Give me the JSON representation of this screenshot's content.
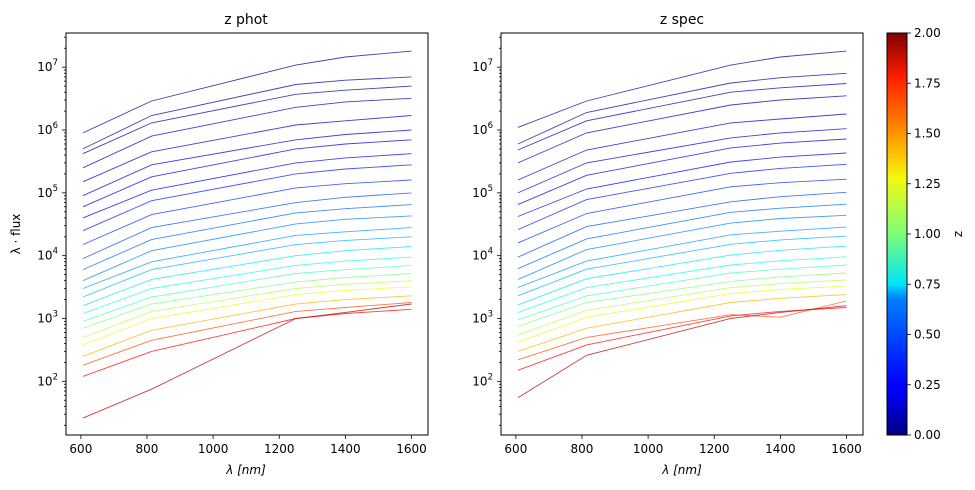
{
  "chart_data": [
    {
      "type": "line",
      "title": "z phot",
      "xlabel": "λ [nm]",
      "ylabel": "λ · flux",
      "x": [
        606,
        814,
        1250,
        1400,
        1600
      ],
      "x_ticks": [
        600,
        800,
        1000,
        1200,
        1400,
        1600
      ],
      "xlim": [
        555,
        1650
      ],
      "y_scale": "log",
      "ylim": [
        14,
        35000000
      ],
      "y_ticks": [
        {
          "value": 100,
          "base": "10",
          "exp": "2"
        },
        {
          "value": 1000,
          "base": "10",
          "exp": "3"
        },
        {
          "value": 10000,
          "base": "10",
          "exp": "4"
        },
        {
          "value": 100000,
          "base": "10",
          "exp": "5"
        },
        {
          "value": 1000000,
          "base": "10",
          "exp": "6"
        },
        {
          "value": 10000000,
          "base": "10",
          "exp": "7"
        }
      ],
      "color_by": "z",
      "colormap": "jet",
      "grid": false,
      "series": [
        {
          "z": 0.05,
          "values": [
            900000,
            2900000,
            10800000,
            14500000,
            18000000
          ]
        },
        {
          "z": 0.08,
          "values": [
            500000,
            1700000,
            5300000,
            6200000,
            7000000
          ]
        },
        {
          "z": 0.1,
          "values": [
            420000,
            1300000,
            3700000,
            4300000,
            5000000
          ]
        },
        {
          "z": 0.12,
          "values": [
            250000,
            800000,
            2300000,
            2800000,
            3200000
          ]
        },
        {
          "z": 0.15,
          "values": [
            150000,
            450000,
            1200000,
            1400000,
            1700000
          ]
        },
        {
          "z": 0.18,
          "values": [
            90000,
            280000,
            700000,
            850000,
            1000000
          ]
        },
        {
          "z": 0.2,
          "values": [
            60000,
            180000,
            500000,
            600000,
            700000
          ]
        },
        {
          "z": 0.25,
          "values": [
            40000,
            110000,
            300000,
            360000,
            420000
          ]
        },
        {
          "z": 0.3,
          "values": [
            25000,
            75000,
            200000,
            240000,
            280000
          ]
        },
        {
          "z": 0.35,
          "values": [
            15000,
            45000,
            120000,
            140000,
            160000
          ]
        },
        {
          "z": 0.4,
          "values": [
            9000,
            28000,
            70000,
            85000,
            100000
          ]
        },
        {
          "z": 0.45,
          "values": [
            6000,
            18000,
            48000,
            56000,
            65000
          ]
        },
        {
          "z": 0.5,
          "values": [
            4000,
            12000,
            32000,
            38000,
            43000
          ]
        },
        {
          "z": 0.55,
          "values": [
            3000,
            8000,
            21000,
            24000,
            28000
          ]
        },
        {
          "z": 0.6,
          "values": [
            2200,
            6000,
            15000,
            17500,
            20000
          ]
        },
        {
          "z": 0.7,
          "values": [
            1600,
            4200,
            10000,
            12000,
            14000
          ]
        },
        {
          "z": 0.8,
          "values": [
            1200,
            3000,
            7000,
            8200,
            9500
          ]
        },
        {
          "z": 0.9,
          "values": [
            900,
            2200,
            5200,
            6000,
            7000
          ]
        },
        {
          "z": 1.0,
          "values": [
            700,
            1700,
            3800,
            4500,
            5200
          ]
        },
        {
          "z": 1.1,
          "values": [
            500,
            1300,
            3000,
            3500,
            4000
          ]
        },
        {
          "z": 1.2,
          "values": [
            380,
            1000,
            2400,
            2800,
            3200
          ]
        },
        {
          "z": 1.4,
          "values": [
            250,
            650,
            1700,
            2000,
            2300
          ]
        },
        {
          "z": 1.6,
          "values": [
            180,
            450,
            1300,
            1500,
            1800
          ]
        },
        {
          "z": 1.75,
          "values": [
            120,
            300,
            1000,
            1200,
            1400
          ]
        },
        {
          "z": 1.9,
          "values": [
            26,
            75,
            1000,
            1250,
            1700
          ]
        }
      ]
    },
    {
      "type": "line",
      "title": "z spec",
      "xlabel": "λ [nm]",
      "ylabel": "",
      "x": [
        606,
        814,
        1250,
        1400,
        1600
      ],
      "x_ticks": [
        600,
        800,
        1000,
        1200,
        1400,
        1600
      ],
      "xlim": [
        555,
        1650
      ],
      "y_scale": "log",
      "ylim": [
        14,
        35000000
      ],
      "y_ticks": [
        {
          "value": 100,
          "base": "10",
          "exp": "2"
        },
        {
          "value": 1000,
          "base": "10",
          "exp": "3"
        },
        {
          "value": 10000,
          "base": "10",
          "exp": "4"
        },
        {
          "value": 100000,
          "base": "10",
          "exp": "5"
        },
        {
          "value": 1000000,
          "base": "10",
          "exp": "6"
        },
        {
          "value": 10000000,
          "base": "10",
          "exp": "7"
        }
      ],
      "color_by": "z",
      "colormap": "jet",
      "grid": false,
      "series": [
        {
          "z": 0.05,
          "values": [
            1100000,
            2900000,
            10800000,
            14500000,
            18000000
          ]
        },
        {
          "z": 0.08,
          "values": [
            600000,
            1900000,
            5600000,
            6800000,
            8000000
          ]
        },
        {
          "z": 0.1,
          "values": [
            480000,
            1400000,
            4000000,
            4700000,
            5500000
          ]
        },
        {
          "z": 0.12,
          "values": [
            300000,
            900000,
            2500000,
            3000000,
            3500000
          ]
        },
        {
          "z": 0.15,
          "values": [
            160000,
            480000,
            1300000,
            1500000,
            1800000
          ]
        },
        {
          "z": 0.18,
          "values": [
            100000,
            300000,
            750000,
            900000,
            1050000
          ]
        },
        {
          "z": 0.2,
          "values": [
            65000,
            190000,
            520000,
            620000,
            720000
          ]
        },
        {
          "z": 0.25,
          "values": [
            42000,
            115000,
            310000,
            370000,
            430000
          ]
        },
        {
          "z": 0.3,
          "values": [
            26000,
            78000,
            205000,
            245000,
            285000
          ]
        },
        {
          "z": 0.35,
          "values": [
            16000,
            47000,
            125000,
            145000,
            165000
          ]
        },
        {
          "z": 0.4,
          "values": [
            9500,
            29000,
            72000,
            87000,
            102000
          ]
        },
        {
          "z": 0.45,
          "values": [
            6200,
            18500,
            49000,
            57000,
            66000
          ]
        },
        {
          "z": 0.5,
          "values": [
            4200,
            12500,
            33000,
            39000,
            44000
          ]
        },
        {
          "z": 0.55,
          "values": [
            3100,
            8200,
            21500,
            24500,
            28500
          ]
        },
        {
          "z": 0.6,
          "values": [
            2300,
            6100,
            15200,
            17800,
            20500
          ]
        },
        {
          "z": 0.7,
          "values": [
            1650,
            4300,
            10200,
            12200,
            14200
          ]
        },
        {
          "z": 0.8,
          "values": [
            1250,
            3100,
            7100,
            8300,
            9600
          ]
        },
        {
          "z": 0.9,
          "values": [
            950,
            2300,
            5300,
            6100,
            7100
          ]
        },
        {
          "z": 1.0,
          "values": [
            750,
            1800,
            3900,
            4600,
            5300
          ]
        },
        {
          "z": 1.1,
          "values": [
            550,
            1350,
            3100,
            3600,
            4100
          ]
        },
        {
          "z": 1.2,
          "values": [
            420,
            1050,
            2500,
            2900,
            3300
          ]
        },
        {
          "z": 1.4,
          "values": [
            300,
            700,
            1800,
            2100,
            2400
          ]
        },
        {
          "z": 1.6,
          "values": [
            220,
            500,
            1150,
            1050,
            1900
          ]
        },
        {
          "z": 1.75,
          "values": [
            150,
            380,
            1100,
            1300,
            1500
          ]
        },
        {
          "z": 1.9,
          "values": [
            55,
            260,
            1000,
            1250,
            1600
          ]
        }
      ]
    }
  ],
  "colorbar": {
    "label": "z",
    "colormap": "jet",
    "range": [
      0,
      2
    ],
    "ticks": [
      "0.00",
      "0.25",
      "0.50",
      "0.75",
      "1.00",
      "1.25",
      "1.50",
      "1.75",
      "2.00"
    ],
    "tick_values": [
      0,
      0.25,
      0.5,
      0.75,
      1.0,
      1.25,
      1.5,
      1.75,
      2.0
    ]
  }
}
